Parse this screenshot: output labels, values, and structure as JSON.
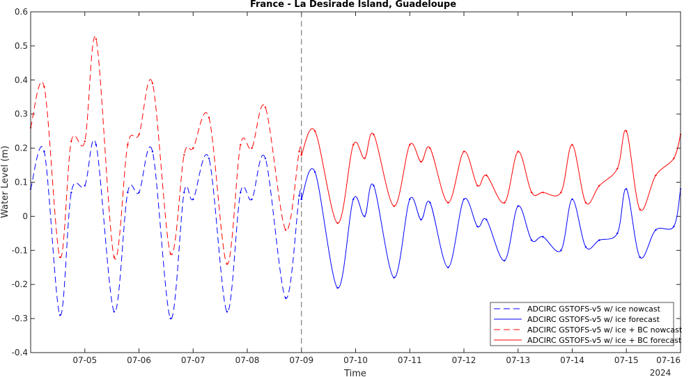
{
  "chart_data": {
    "type": "line",
    "title": "France - La Desirade Island, Guadeloupe",
    "xlabel": "Time",
    "ylabel": "Water Level (m)",
    "year_label": "2024",
    "xlim": [
      "2024-07-04T00:00",
      "2024-07-16T00:00"
    ],
    "ylim": [
      -0.4,
      0.6
    ],
    "y_ticks": [
      -0.4,
      -0.3,
      -0.2,
      -0.1,
      0,
      0.1,
      0.2,
      0.3,
      0.4,
      0.5,
      0.6
    ],
    "y_tick_labels": [
      "-0.4",
      "-0.3",
      "-0.2",
      "-0.1",
      "0",
      "0.1",
      "0.2",
      "0.3",
      "0.4",
      "0.5",
      "0.6"
    ],
    "x_ticks": [
      "2024-07-05",
      "2024-07-06",
      "2024-07-07",
      "2024-07-08",
      "2024-07-09",
      "2024-07-10",
      "2024-07-11",
      "2024-07-12",
      "2024-07-13",
      "2024-07-14",
      "2024-07-15",
      "2024-07-16"
    ],
    "x_tick_labels": [
      "07-05",
      "07-06",
      "07-07",
      "07-08",
      "07-09",
      "07-10",
      "07-11",
      "07-12",
      "07-13",
      "07-14",
      "07-15",
      "07-16"
    ],
    "nowcast_forecast_boundary": "2024-07-09T00:00",
    "grid": false,
    "legend_position": "bottom-right",
    "series": [
      {
        "name": "ADCIRC GSTOFS-v5  w/ ice nowcast",
        "color": "#0000ff",
        "style": "dashed",
        "x": [
          "2024-07-04T00:00",
          "2024-07-04T06:00",
          "2024-07-04T13:00",
          "2024-07-04T18:00",
          "2024-07-05T00:00",
          "2024-07-05T05:00",
          "2024-07-05T13:00",
          "2024-07-05T19:00",
          "2024-07-06T00:00",
          "2024-07-06T06:00",
          "2024-07-06T14:00",
          "2024-07-06T20:00",
          "2024-07-07T00:00",
          "2024-07-07T07:00",
          "2024-07-07T15:00",
          "2024-07-07T21:00",
          "2024-07-08T02:00",
          "2024-07-08T08:00",
          "2024-07-08T17:00",
          "2024-07-08T23:00",
          "2024-07-09T00:00"
        ],
        "y": [
          0.08,
          0.19,
          -0.29,
          0.07,
          0.09,
          0.21,
          -0.28,
          0.07,
          0.07,
          0.19,
          -0.3,
          0.07,
          0.05,
          0.17,
          -0.28,
          0.07,
          0.05,
          0.17,
          -0.24,
          0.06,
          0.05
        ]
      },
      {
        "name": "ADCIRC GSTOFS-v5  w/ ice forecast",
        "color": "#0000ff",
        "style": "solid",
        "x": [
          "2024-07-09T00:00",
          "2024-07-09T06:00",
          "2024-07-09T16:00",
          "2024-07-09T23:00",
          "2024-07-10T04:00",
          "2024-07-10T08:00",
          "2024-07-10T17:00",
          "2024-07-11T00:00",
          "2024-07-11T05:00",
          "2024-07-11T09:00",
          "2024-07-11T17:00",
          "2024-07-12T00:00",
          "2024-07-12T06:00",
          "2024-07-12T10:00",
          "2024-07-12T18:00",
          "2024-07-13T00:00",
          "2024-07-13T06:00",
          "2024-07-13T11:00",
          "2024-07-13T19:00",
          "2024-07-14T00:00",
          "2024-07-14T06:00",
          "2024-07-14T12:00",
          "2024-07-14T20:00",
          "2024-07-15T00:00",
          "2024-07-15T06:00",
          "2024-07-15T13:00",
          "2024-07-15T21:00",
          "2024-07-16T00:00"
        ],
        "y": [
          0.05,
          0.13,
          -0.21,
          0.05,
          0.0,
          0.09,
          -0.18,
          0.05,
          -0.01,
          0.04,
          -0.15,
          0.05,
          -0.03,
          -0.01,
          -0.13,
          0.03,
          -0.07,
          -0.06,
          -0.1,
          0.05,
          -0.09,
          -0.07,
          -0.05,
          0.08,
          -0.12,
          -0.04,
          -0.03,
          0.08
        ]
      },
      {
        "name": "ADCIRC GSTOFS-v5  w/ ice + BC nowcast",
        "color": "#ff0000",
        "style": "dashed",
        "x": [
          "2024-07-04T00:00",
          "2024-07-04T06:00",
          "2024-07-04T13:00",
          "2024-07-04T18:00",
          "2024-07-05T00:00",
          "2024-07-05T05:00",
          "2024-07-05T13:00",
          "2024-07-05T19:00",
          "2024-07-06T00:00",
          "2024-07-06T06:00",
          "2024-07-06T14:00",
          "2024-07-06T20:00",
          "2024-07-07T00:00",
          "2024-07-07T07:00",
          "2024-07-07T15:00",
          "2024-07-07T21:00",
          "2024-07-08T02:00",
          "2024-07-08T08:00",
          "2024-07-08T17:00",
          "2024-07-08T23:00",
          "2024-07-09T00:00"
        ],
        "y": [
          0.26,
          0.38,
          -0.12,
          0.22,
          0.22,
          0.52,
          -0.12,
          0.21,
          0.24,
          0.39,
          -0.11,
          0.18,
          0.2,
          0.29,
          -0.14,
          0.21,
          0.2,
          0.32,
          -0.04,
          0.19,
          0.18
        ]
      },
      {
        "name": "ADCIRC GSTOFS-v5  w/ ice + BC forecast",
        "color": "#ff0000",
        "style": "solid",
        "x": [
          "2024-07-09T00:00",
          "2024-07-09T06:00",
          "2024-07-09T16:00",
          "2024-07-09T23:00",
          "2024-07-10T04:00",
          "2024-07-10T08:00",
          "2024-07-10T17:00",
          "2024-07-11T00:00",
          "2024-07-11T05:00",
          "2024-07-11T09:00",
          "2024-07-11T17:00",
          "2024-07-12T00:00",
          "2024-07-12T06:00",
          "2024-07-12T10:00",
          "2024-07-12T18:00",
          "2024-07-13T00:00",
          "2024-07-13T06:00",
          "2024-07-13T11:00",
          "2024-07-13T19:00",
          "2024-07-14T00:00",
          "2024-07-14T06:00",
          "2024-07-14T12:00",
          "2024-07-14T20:00",
          "2024-07-15T00:00",
          "2024-07-15T06:00",
          "2024-07-15T13:00",
          "2024-07-15T21:00",
          "2024-07-16T00:00"
        ],
        "y": [
          0.18,
          0.25,
          -0.02,
          0.21,
          0.17,
          0.24,
          0.03,
          0.21,
          0.16,
          0.2,
          0.04,
          0.19,
          0.09,
          0.12,
          0.04,
          0.19,
          0.07,
          0.07,
          0.07,
          0.21,
          0.04,
          0.09,
          0.14,
          0.25,
          0.02,
          0.12,
          0.17,
          0.24
        ]
      }
    ]
  }
}
